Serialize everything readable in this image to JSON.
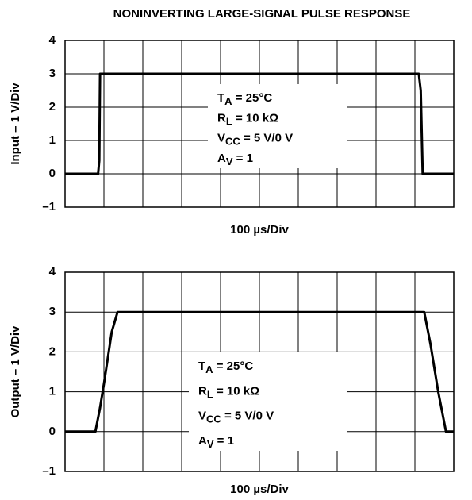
{
  "title": "NONINVERTING LARGE-SIGNAL PULSE RESPONSE",
  "chart_data": [
    {
      "type": "line",
      "y_label": "Input – 1 V/Div",
      "x_label": "100 µs/Div",
      "xlim": [
        0,
        10
      ],
      "ylim": [
        -1,
        4
      ],
      "yticks": [
        {
          "value": -1,
          "label": "–1"
        },
        0,
        1,
        2,
        3,
        4
      ],
      "grid": true,
      "x": [
        0,
        0.85,
        0.88,
        0.9,
        9.1,
        9.15,
        9.2,
        10
      ],
      "series": [
        {
          "color": "#000000",
          "values": [
            0,
            0,
            0.4,
            3,
            3,
            2.5,
            0,
            0
          ]
        }
      ],
      "annotation": [
        {
          "main": "T",
          "sub": "A",
          "rest": " = 25°C"
        },
        {
          "main": "R",
          "sub": "L",
          "rest": " = 10 kΩ"
        },
        {
          "main": "V",
          "sub": "CC",
          "rest": " = 5 V/0 V"
        },
        {
          "main": "A",
          "sub": "V",
          "rest": " = 1"
        }
      ]
    },
    {
      "type": "line",
      "y_label": "Output – 1 V/Div",
      "x_label": "100 µs/Div",
      "xlim": [
        0,
        10
      ],
      "ylim": [
        -1,
        4
      ],
      "yticks": [
        {
          "value": -1,
          "label": "–1"
        },
        0,
        1,
        2,
        3,
        4
      ],
      "grid": true,
      "x": [
        0,
        0.78,
        0.9,
        1.0,
        1.2,
        1.35,
        9.24,
        9.4,
        9.6,
        9.8,
        10
      ],
      "series": [
        {
          "color": "#000000",
          "values": [
            0,
            0,
            0.6,
            1.2,
            2.5,
            3,
            3,
            2.2,
            1,
            0,
            0
          ]
        }
      ],
      "annotation": [
        {
          "main": "T",
          "sub": "A",
          "rest": " = 25°C"
        },
        {
          "main": "R",
          "sub": "L",
          "rest": " = 10 kΩ"
        },
        {
          "main": "V",
          "sub": "CC",
          "rest": " = 5 V/0 V"
        },
        {
          "main": "A",
          "sub": "V",
          "rest": " = 1"
        }
      ]
    }
  ]
}
